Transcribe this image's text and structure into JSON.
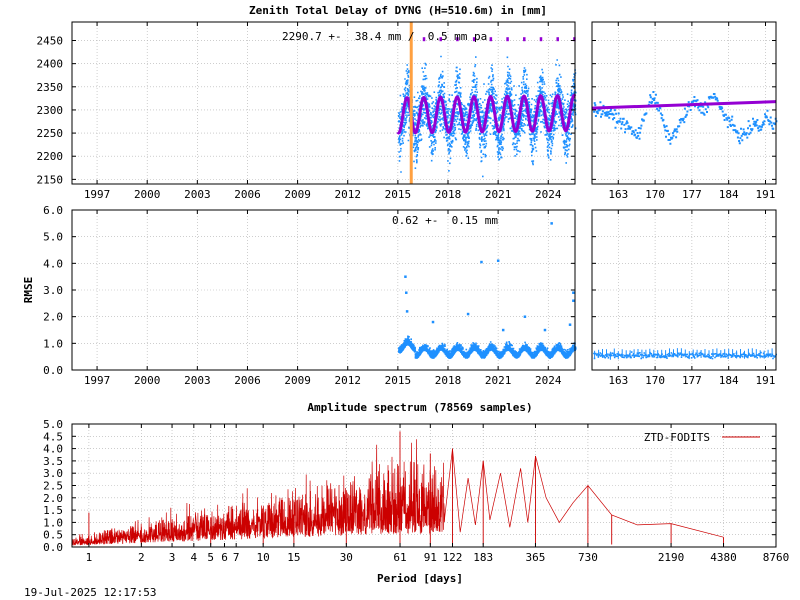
{
  "figure": {
    "title": "Zenith Total Delay of DYNG (H=510.6m) in [mm]",
    "timestamp": "19-Jul-2025 12:17:53"
  },
  "chart_data": [
    {
      "type": "scatter",
      "id": "ztd_main",
      "annotation": "2290.7 +-  38.4 mm /  0.5 mm pa",
      "xlim": [
        1995.5,
        2025.6
      ],
      "x_ticks": [
        1997,
        2000,
        2003,
        2006,
        2009,
        2012,
        2015,
        2018,
        2021,
        2024
      ],
      "ylim": [
        2140,
        2490
      ],
      "y_ticks": [
        2150,
        2200,
        2250,
        2300,
        2350,
        2400,
        2450
      ],
      "grid": true,
      "data_start_year": 2015.0,
      "mean_value": 2290.7,
      "std_value": 38.4,
      "trend_mm_per_year": 0.5,
      "seasonal_amplitude": 38,
      "marker_line_year": 2015.8,
      "series": [
        {
          "role": "observations",
          "color": "#1e90ff"
        },
        {
          "role": "seasonal model",
          "color": "#9400d3"
        },
        {
          "role": "discontinuity",
          "color": "#ffa040"
        }
      ]
    },
    {
      "type": "scatter",
      "id": "ztd_zoom",
      "xlim": [
        158,
        193
      ],
      "x_ticks": [
        163,
        170,
        177,
        184,
        191
      ],
      "ylim": [
        2140,
        2490
      ],
      "grid": true,
      "trend_line": [
        [
          158,
          2304
        ],
        [
          193,
          2318
        ]
      ],
      "series": [
        {
          "role": "observations",
          "color": "#1e90ff"
        },
        {
          "role": "seasonal model",
          "color": "#9400d3"
        }
      ]
    },
    {
      "type": "scatter",
      "id": "rmse_main",
      "annotation": "0.62 +-  0.15 mm",
      "ylabel": "RMSE",
      "xlim": [
        1995.5,
        2025.6
      ],
      "x_ticks": [
        1997,
        2000,
        2003,
        2006,
        2009,
        2012,
        2015,
        2018,
        2021,
        2024
      ],
      "ylim": [
        0,
        6
      ],
      "y_ticks": [
        "0.0",
        "1.0",
        "2.0",
        "3.0",
        "4.0",
        "5.0",
        "6.0"
      ],
      "grid": true,
      "mean_value": 0.62,
      "std_value": 0.15,
      "outliers": [
        [
          2015.45,
          3.5
        ],
        [
          2015.5,
          2.9
        ],
        [
          2015.55,
          2.2
        ],
        [
          2020.0,
          4.05
        ],
        [
          2021.0,
          4.1
        ],
        [
          2024.2,
          5.5
        ],
        [
          2025.5,
          2.9
        ],
        [
          2025.5,
          2.6
        ],
        [
          2019.2,
          2.1
        ],
        [
          2022.6,
          2.0
        ],
        [
          2017.1,
          1.8
        ],
        [
          2025.3,
          1.7
        ],
        [
          2023.8,
          1.5
        ],
        [
          2021.3,
          1.5
        ]
      ],
      "series": [
        {
          "role": "observations",
          "color": "#1e90ff"
        }
      ]
    },
    {
      "type": "scatter",
      "id": "rmse_zoom",
      "xlim": [
        158,
        193
      ],
      "x_ticks": [
        163,
        170,
        177,
        184,
        191
      ],
      "ylim": [
        0,
        6
      ],
      "grid": true,
      "series": [
        {
          "role": "observations",
          "color": "#1e90ff"
        }
      ]
    },
    {
      "type": "line",
      "id": "spectrum",
      "title": "Amplitude spectrum (78569 samples)",
      "xlabel": "Period [days]",
      "x_scale": "log",
      "xlim": [
        0.8,
        8760
      ],
      "x_ticks": [
        1,
        2,
        3,
        4,
        5,
        6,
        7,
        10,
        15,
        30,
        61,
        91,
        122,
        183,
        365,
        730,
        2190,
        4380,
        8760
      ],
      "ylim": [
        0,
        5
      ],
      "y_ticks": [
        "0.0",
        "0.5",
        "1.0",
        "1.5",
        "2.0",
        "2.5",
        "3.0",
        "3.5",
        "4.0",
        "4.5",
        "5.0"
      ],
      "grid": true,
      "legend": {
        "label": "ZTD-FODITS",
        "position": "top-right",
        "color": "#cc0000"
      },
      "peaks": [
        [
          1,
          1.4
        ],
        [
          2,
          0.8
        ],
        [
          5,
          1.2
        ],
        [
          10,
          1.6
        ],
        [
          15,
          1.9
        ],
        [
          30,
          2.3
        ],
        [
          61,
          4.7
        ],
        [
          91,
          3.8
        ],
        [
          122,
          4.0
        ],
        [
          183,
          3.5
        ],
        [
          365,
          3.7
        ],
        [
          730,
          2.5
        ],
        [
          1000,
          1.3
        ],
        [
          2190,
          0.95
        ],
        [
          4380,
          0.4
        ]
      ]
    }
  ]
}
